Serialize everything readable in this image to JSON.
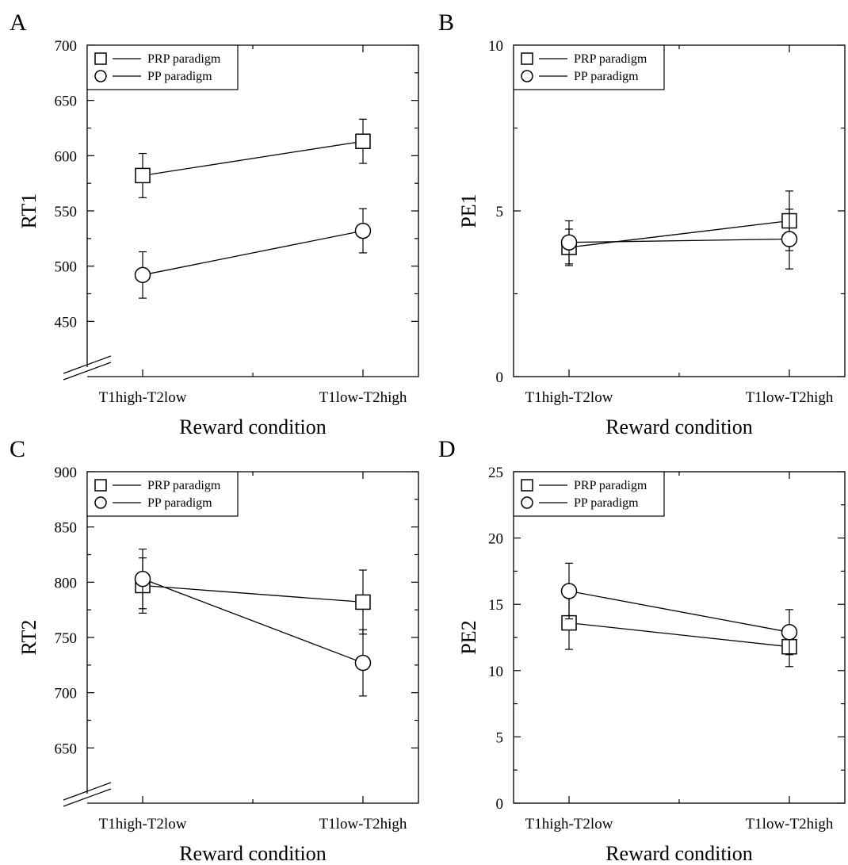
{
  "chart_data": [
    {
      "panel": "A",
      "type": "line",
      "categories": [
        "T1high-T2low",
        "T1low-T2high"
      ],
      "xlabel": "Reward condition",
      "ylabel": "RT1",
      "ylim": [
        400,
        700
      ],
      "yticks": [
        450,
        500,
        550,
        600,
        650,
        700
      ],
      "axis_break": true,
      "legend": "top-left",
      "series": [
        {
          "name": "PRP paradigm",
          "marker": "square",
          "values": [
            582,
            613
          ],
          "errors": [
            20,
            20
          ]
        },
        {
          "name": "PP paradigm",
          "marker": "circle",
          "values": [
            492,
            532
          ],
          "errors": [
            21,
            20
          ]
        }
      ]
    },
    {
      "panel": "B",
      "type": "line",
      "categories": [
        "T1high-T2low",
        "T1low-T2high"
      ],
      "xlabel": "Reward condition",
      "ylabel": "PE1",
      "ylim": [
        0,
        10
      ],
      "yticks": [
        0,
        5,
        10
      ],
      "axis_break": false,
      "legend": "top-left",
      "series": [
        {
          "name": "PRP paradigm",
          "marker": "square",
          "values": [
            3.9,
            4.7
          ],
          "errors": [
            0.55,
            0.9
          ]
        },
        {
          "name": "PP paradigm",
          "marker": "circle",
          "values": [
            4.05,
            4.15
          ],
          "errors": [
            0.65,
            0.9
          ]
        }
      ]
    },
    {
      "panel": "C",
      "type": "line",
      "categories": [
        "T1high-T2low",
        "T1low-T2high"
      ],
      "xlabel": "Reward condition",
      "ylabel": "RT2",
      "ylim": [
        600,
        900
      ],
      "yticks": [
        650,
        700,
        750,
        800,
        850,
        900
      ],
      "axis_break": true,
      "legend": "top-left",
      "series": [
        {
          "name": "PRP paradigm",
          "marker": "square",
          "values": [
            797,
            782
          ],
          "errors": [
            25,
            29
          ]
        },
        {
          "name": "PP paradigm",
          "marker": "circle",
          "values": [
            803,
            727
          ],
          "errors": [
            27,
            30
          ]
        }
      ]
    },
    {
      "panel": "D",
      "type": "line",
      "categories": [
        "T1high-T2low",
        "T1low-T2high"
      ],
      "xlabel": "Reward condition",
      "ylabel": "PE2",
      "ylim": [
        0,
        25
      ],
      "yticks": [
        0,
        5,
        10,
        15,
        20,
        25
      ],
      "axis_break": false,
      "legend": "top-left",
      "series": [
        {
          "name": "PRP paradigm",
          "marker": "square",
          "values": [
            13.6,
            11.8
          ],
          "errors": [
            2.0,
            1.5
          ]
        },
        {
          "name": "PP paradigm",
          "marker": "circle",
          "values": [
            16.0,
            12.9
          ],
          "errors": [
            2.1,
            1.7
          ]
        }
      ]
    }
  ]
}
